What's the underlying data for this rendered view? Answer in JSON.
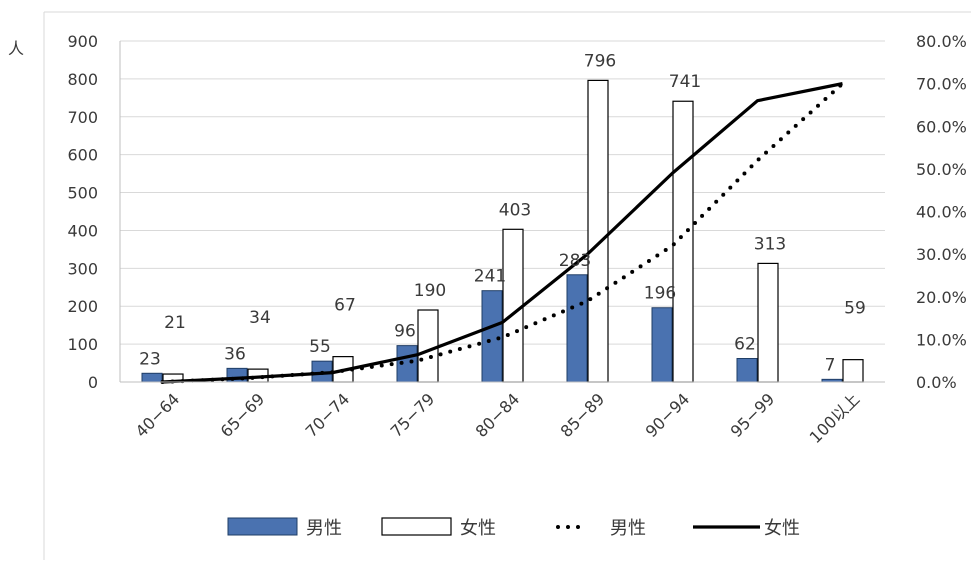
{
  "chart_data": {
    "type": "bar",
    "y_unit_label": "人",
    "categories": [
      "40−64",
      "65−69",
      "70−74",
      "75−79",
      "80−84",
      "85−89",
      "90−94",
      "95−99",
      "100以上"
    ],
    "bar_series": [
      {
        "name": "男性",
        "style": "filled",
        "color": "#4a72b0",
        "values": [
          23,
          36,
          55,
          96,
          241,
          283,
          196,
          62,
          7
        ]
      },
      {
        "name": "女性",
        "style": "outline",
        "color": "#ffffff",
        "values": [
          21,
          34,
          67,
          190,
          403,
          796,
          741,
          313,
          59
        ]
      }
    ],
    "line_series": [
      {
        "name": "男性",
        "style": "dotted",
        "color": "#000000",
        "values": [
          0.0,
          0.9,
          2.3,
          5.0,
          10.5,
          19.0,
          32.0,
          52.0,
          70.0
        ]
      },
      {
        "name": "女性",
        "style": "solid",
        "color": "#000000",
        "values": [
          0.0,
          1.0,
          2.2,
          6.4,
          14.0,
          30.0,
          49.0,
          66.0,
          70.0
        ]
      }
    ],
    "y_left": {
      "min": 0,
      "max": 900,
      "step": 100,
      "tick_labels": [
        "0",
        "100",
        "200",
        "300",
        "400",
        "500",
        "600",
        "700",
        "800",
        "900"
      ]
    },
    "y_right": {
      "min": 0,
      "max": 80,
      "step": 10,
      "tick_labels": [
        "0.0%",
        "10.0%",
        "20.0%",
        "30.0%",
        "40.0%",
        "50.0%",
        "60.0%",
        "70.0%",
        "80.0%"
      ]
    },
    "grid": true,
    "legend_position": "bottom",
    "legend": [
      {
        "label": "男性",
        "kind": "bar-filled"
      },
      {
        "label": "女性",
        "kind": "bar-outline"
      },
      {
        "label": "男性",
        "kind": "line-dotted"
      },
      {
        "label": "女性",
        "kind": "line-solid"
      }
    ],
    "colors": {
      "male_bar": "#4a72b0",
      "grid": "#d9d9d9",
      "text": "#3a3a3a",
      "line": "#000000"
    }
  }
}
